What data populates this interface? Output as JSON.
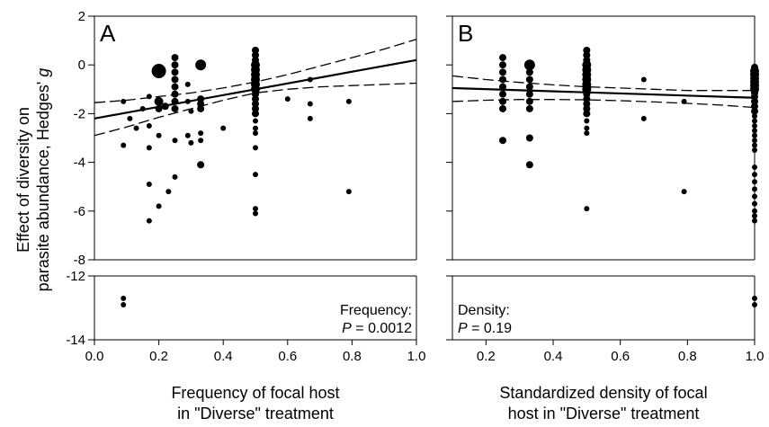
{
  "y_axis": {
    "title_line1": "Effect of diversity on",
    "title_line2": "parasite abundance, Hedges'",
    "title_symbol": "g",
    "ticks": [
      2,
      0,
      -2,
      -4,
      -6,
      -8,
      -12,
      -14
    ],
    "upper_range": [
      -8,
      2
    ],
    "lower_range": [
      -14,
      -12
    ],
    "tick_labels": [
      "2",
      "0",
      "-2",
      "-4",
      "-6",
      "-8",
      "-12",
      "-14"
    ]
  },
  "chart_data": [
    {
      "type": "scatter",
      "panel_letter": "A",
      "xlabel_line1": "Frequency of focal host",
      "xlabel_line2": "in \"Diverse\" treatment",
      "xlim": [
        0,
        1.0
      ],
      "xticks": [
        0.0,
        0.2,
        0.4,
        0.6,
        0.8,
        1.0
      ],
      "xtick_labels": [
        "0.0",
        "0.2",
        "0.4",
        "0.6",
        "0.8",
        "1.0"
      ],
      "annotation_line1": "Frequency:",
      "annotation_p": "P",
      "annotation_value": " = 0.0012",
      "fit": {
        "x": [
          0,
          1.0
        ],
        "y": [
          -2.2,
          0.2
        ]
      },
      "ci_upper": {
        "x": [
          0,
          0.1,
          0.2,
          0.3,
          0.4,
          0.5,
          0.6,
          0.7,
          0.8,
          0.9,
          1.0
        ],
        "y": [
          -1.55,
          -1.45,
          -1.3,
          -1.15,
          -0.95,
          -0.7,
          -0.4,
          -0.05,
          0.3,
          0.65,
          1.05
        ]
      },
      "ci_lower": {
        "x": [
          0,
          0.1,
          0.2,
          0.3,
          0.4,
          0.5,
          0.6,
          0.7,
          0.8,
          0.9,
          1.0
        ],
        "y": [
          -2.9,
          -2.55,
          -2.15,
          -1.8,
          -1.45,
          -1.15,
          -1.0,
          -0.9,
          -0.85,
          -0.8,
          -0.75
        ]
      },
      "points": [
        {
          "x": 0.09,
          "y": -1.5,
          "s": 3
        },
        {
          "x": 0.09,
          "y": -3.3,
          "s": 3
        },
        {
          "x": 0.09,
          "y": -12.7,
          "s": 3
        },
        {
          "x": 0.09,
          "y": -12.9,
          "s": 3
        },
        {
          "x": 0.11,
          "y": -2.2,
          "s": 3
        },
        {
          "x": 0.13,
          "y": -2.6,
          "s": 3
        },
        {
          "x": 0.15,
          "y": -1.8,
          "s": 3
        },
        {
          "x": 0.17,
          "y": -1.3,
          "s": 3
        },
        {
          "x": 0.17,
          "y": -2.5,
          "s": 3
        },
        {
          "x": 0.17,
          "y": -3.4,
          "s": 3
        },
        {
          "x": 0.17,
          "y": -4.9,
          "s": 3
        },
        {
          "x": 0.17,
          "y": -6.4,
          "s": 3
        },
        {
          "x": 0.2,
          "y": -0.25,
          "s": 8
        },
        {
          "x": 0.2,
          "y": -1.5,
          "s": 5
        },
        {
          "x": 0.2,
          "y": -1.8,
          "s": 4
        },
        {
          "x": 0.2,
          "y": -2.9,
          "s": 3
        },
        {
          "x": 0.2,
          "y": -5.8,
          "s": 3
        },
        {
          "x": 0.22,
          "y": -1.7,
          "s": 4
        },
        {
          "x": 0.23,
          "y": -5.2,
          "s": 3
        },
        {
          "x": 0.25,
          "y": 0.3,
          "s": 4
        },
        {
          "x": 0.25,
          "y": 0.0,
          "s": 4
        },
        {
          "x": 0.25,
          "y": -0.3,
          "s": 4
        },
        {
          "x": 0.25,
          "y": -0.6,
          "s": 4
        },
        {
          "x": 0.25,
          "y": -0.9,
          "s": 4
        },
        {
          "x": 0.25,
          "y": -1.2,
          "s": 4
        },
        {
          "x": 0.25,
          "y": -1.5,
          "s": 4
        },
        {
          "x": 0.25,
          "y": -1.8,
          "s": 4
        },
        {
          "x": 0.25,
          "y": -3.1,
          "s": 3
        },
        {
          "x": 0.25,
          "y": -4.6,
          "s": 3
        },
        {
          "x": 0.29,
          "y": -0.8,
          "s": 3
        },
        {
          "x": 0.29,
          "y": -1.5,
          "s": 3
        },
        {
          "x": 0.29,
          "y": -2.9,
          "s": 3
        },
        {
          "x": 0.3,
          "y": -1.9,
          "s": 3
        },
        {
          "x": 0.3,
          "y": -3.2,
          "s": 3
        },
        {
          "x": 0.33,
          "y": 0.0,
          "s": 6
        },
        {
          "x": 0.33,
          "y": -1.4,
          "s": 4
        },
        {
          "x": 0.33,
          "y": -1.6,
          "s": 4
        },
        {
          "x": 0.33,
          "y": -1.8,
          "s": 4
        },
        {
          "x": 0.33,
          "y": -2.8,
          "s": 3
        },
        {
          "x": 0.33,
          "y": -3.1,
          "s": 3
        },
        {
          "x": 0.33,
          "y": -4.1,
          "s": 4
        },
        {
          "x": 0.4,
          "y": -2.6,
          "s": 3
        },
        {
          "x": 0.5,
          "y": 0.6,
          "s": 4
        },
        {
          "x": 0.5,
          "y": 0.4,
          "s": 4
        },
        {
          "x": 0.5,
          "y": 0.2,
          "s": 4
        },
        {
          "x": 0.5,
          "y": 0.0,
          "s": 5
        },
        {
          "x": 0.5,
          "y": -0.2,
          "s": 5
        },
        {
          "x": 0.5,
          "y": -0.4,
          "s": 5
        },
        {
          "x": 0.5,
          "y": -0.6,
          "s": 5
        },
        {
          "x": 0.5,
          "y": -0.8,
          "s": 5
        },
        {
          "x": 0.5,
          "y": -1.0,
          "s": 5
        },
        {
          "x": 0.5,
          "y": -1.2,
          "s": 4
        },
        {
          "x": 0.5,
          "y": -1.4,
          "s": 4
        },
        {
          "x": 0.5,
          "y": -1.6,
          "s": 4
        },
        {
          "x": 0.5,
          "y": -1.8,
          "s": 4
        },
        {
          "x": 0.5,
          "y": -2.0,
          "s": 4
        },
        {
          "x": 0.5,
          "y": -2.3,
          "s": 3
        },
        {
          "x": 0.5,
          "y": -2.6,
          "s": 3
        },
        {
          "x": 0.5,
          "y": -2.8,
          "s": 3
        },
        {
          "x": 0.5,
          "y": -3.4,
          "s": 3
        },
        {
          "x": 0.5,
          "y": -4.5,
          "s": 3
        },
        {
          "x": 0.5,
          "y": -5.9,
          "s": 3
        },
        {
          "x": 0.5,
          "y": -6.1,
          "s": 3
        },
        {
          "x": 0.6,
          "y": -1.4,
          "s": 3
        },
        {
          "x": 0.67,
          "y": -0.6,
          "s": 3
        },
        {
          "x": 0.67,
          "y": -1.6,
          "s": 3
        },
        {
          "x": 0.67,
          "y": -2.2,
          "s": 3
        },
        {
          "x": 0.79,
          "y": -1.5,
          "s": 3
        },
        {
          "x": 0.79,
          "y": -5.2,
          "s": 3
        }
      ]
    },
    {
      "type": "scatter",
      "panel_letter": "B",
      "xlabel_line1": "Standardized density of focal",
      "xlabel_line2": "host in \"Diverse\" treatment",
      "xlim": [
        0.1,
        1.0
      ],
      "xticks": [
        0.2,
        0.4,
        0.6,
        0.8,
        1.0
      ],
      "xtick_labels": [
        "0.2",
        "0.4",
        "0.6",
        "0.8",
        "1.0"
      ],
      "annotation_line1": "Density:",
      "annotation_p": "P",
      "annotation_value": " = 0.19",
      "fit": {
        "x": [
          0.1,
          1.0
        ],
        "y": [
          -0.95,
          -1.35
        ]
      },
      "ci_upper": {
        "x": [
          0.1,
          0.2,
          0.3,
          0.4,
          0.5,
          0.6,
          0.7,
          0.8,
          0.9,
          1.0
        ],
        "y": [
          -0.45,
          -0.6,
          -0.72,
          -0.82,
          -0.9,
          -0.95,
          -1.0,
          -1.05,
          -1.05,
          -1.05
        ]
      },
      "ci_lower": {
        "x": [
          0.1,
          0.2,
          0.3,
          0.4,
          0.5,
          0.6,
          0.7,
          0.8,
          0.9,
          1.0
        ],
        "y": [
          -1.5,
          -1.45,
          -1.42,
          -1.42,
          -1.43,
          -1.47,
          -1.52,
          -1.58,
          -1.65,
          -1.75
        ]
      },
      "points": [
        {
          "x": 0.25,
          "y": 0.3,
          "s": 4
        },
        {
          "x": 0.25,
          "y": 0.0,
          "s": 4
        },
        {
          "x": 0.25,
          "y": -0.3,
          "s": 4
        },
        {
          "x": 0.25,
          "y": -0.6,
          "s": 4
        },
        {
          "x": 0.25,
          "y": -0.9,
          "s": 4
        },
        {
          "x": 0.25,
          "y": -1.2,
          "s": 4
        },
        {
          "x": 0.25,
          "y": -1.5,
          "s": 4
        },
        {
          "x": 0.25,
          "y": -1.8,
          "s": 4
        },
        {
          "x": 0.25,
          "y": -3.1,
          "s": 4
        },
        {
          "x": 0.33,
          "y": 0.0,
          "s": 6
        },
        {
          "x": 0.33,
          "y": -0.3,
          "s": 4
        },
        {
          "x": 0.33,
          "y": -0.6,
          "s": 4
        },
        {
          "x": 0.33,
          "y": -0.9,
          "s": 4
        },
        {
          "x": 0.33,
          "y": -1.2,
          "s": 4
        },
        {
          "x": 0.33,
          "y": -1.5,
          "s": 4
        },
        {
          "x": 0.33,
          "y": -1.8,
          "s": 4
        },
        {
          "x": 0.33,
          "y": -3.0,
          "s": 4
        },
        {
          "x": 0.33,
          "y": -4.1,
          "s": 4
        },
        {
          "x": 0.5,
          "y": 0.6,
          "s": 4
        },
        {
          "x": 0.5,
          "y": 0.4,
          "s": 4
        },
        {
          "x": 0.5,
          "y": 0.2,
          "s": 4
        },
        {
          "x": 0.5,
          "y": 0.0,
          "s": 5
        },
        {
          "x": 0.5,
          "y": -0.2,
          "s": 5
        },
        {
          "x": 0.5,
          "y": -0.4,
          "s": 5
        },
        {
          "x": 0.5,
          "y": -0.6,
          "s": 5
        },
        {
          "x": 0.5,
          "y": -0.8,
          "s": 5
        },
        {
          "x": 0.5,
          "y": -1.0,
          "s": 5
        },
        {
          "x": 0.5,
          "y": -1.2,
          "s": 4
        },
        {
          "x": 0.5,
          "y": -1.4,
          "s": 4
        },
        {
          "x": 0.5,
          "y": -1.6,
          "s": 4
        },
        {
          "x": 0.5,
          "y": -1.8,
          "s": 4
        },
        {
          "x": 0.5,
          "y": -2.0,
          "s": 4
        },
        {
          "x": 0.5,
          "y": -2.3,
          "s": 3
        },
        {
          "x": 0.5,
          "y": -2.6,
          "s": 3
        },
        {
          "x": 0.5,
          "y": -2.8,
          "s": 3
        },
        {
          "x": 0.5,
          "y": -5.9,
          "s": 3
        },
        {
          "x": 0.67,
          "y": -0.6,
          "s": 3
        },
        {
          "x": 0.67,
          "y": -2.2,
          "s": 3
        },
        {
          "x": 0.79,
          "y": -1.5,
          "s": 3
        },
        {
          "x": 0.79,
          "y": -5.2,
          "s": 3
        },
        {
          "x": 1.0,
          "y": -0.1,
          "s": 4
        },
        {
          "x": 1.0,
          "y": -0.25,
          "s": 5
        },
        {
          "x": 1.0,
          "y": -0.4,
          "s": 5
        },
        {
          "x": 1.0,
          "y": -0.55,
          "s": 5
        },
        {
          "x": 1.0,
          "y": -0.7,
          "s": 5
        },
        {
          "x": 1.0,
          "y": -0.85,
          "s": 5
        },
        {
          "x": 1.0,
          "y": -1.0,
          "s": 5
        },
        {
          "x": 1.0,
          "y": -1.15,
          "s": 4
        },
        {
          "x": 1.0,
          "y": -1.3,
          "s": 4
        },
        {
          "x": 1.0,
          "y": -1.5,
          "s": 4
        },
        {
          "x": 1.0,
          "y": -1.7,
          "s": 4
        },
        {
          "x": 1.0,
          "y": -1.9,
          "s": 4
        },
        {
          "x": 1.0,
          "y": -2.1,
          "s": 3
        },
        {
          "x": 1.0,
          "y": -2.3,
          "s": 3
        },
        {
          "x": 1.0,
          "y": -2.5,
          "s": 3
        },
        {
          "x": 1.0,
          "y": -2.7,
          "s": 3
        },
        {
          "x": 1.0,
          "y": -2.9,
          "s": 3
        },
        {
          "x": 1.0,
          "y": -3.1,
          "s": 3
        },
        {
          "x": 1.0,
          "y": -3.3,
          "s": 3
        },
        {
          "x": 1.0,
          "y": -3.5,
          "s": 3
        },
        {
          "x": 1.0,
          "y": -4.2,
          "s": 3
        },
        {
          "x": 1.0,
          "y": -4.5,
          "s": 3
        },
        {
          "x": 1.0,
          "y": -4.8,
          "s": 3
        },
        {
          "x": 1.0,
          "y": -5.1,
          "s": 3
        },
        {
          "x": 1.0,
          "y": -5.4,
          "s": 3
        },
        {
          "x": 1.0,
          "y": -5.7,
          "s": 3
        },
        {
          "x": 1.0,
          "y": -6.0,
          "s": 3
        },
        {
          "x": 1.0,
          "y": -6.2,
          "s": 3
        },
        {
          "x": 1.0,
          "y": -6.4,
          "s": 3
        },
        {
          "x": 1.0,
          "y": -12.7,
          "s": 3
        },
        {
          "x": 1.0,
          "y": -12.9,
          "s": 3
        }
      ]
    }
  ]
}
